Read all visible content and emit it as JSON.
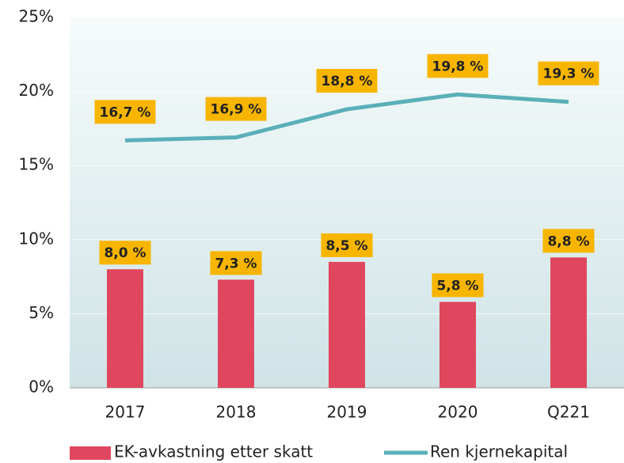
{
  "chart_data": {
    "type": "bar",
    "categories": [
      "2017",
      "2018",
      "2019",
      "2020",
      "Q221"
    ],
    "series": [
      {
        "name": "EK-avkastning etter skatt",
        "type": "bar",
        "color": "#e0475e",
        "values": [
          8.0,
          7.3,
          8.5,
          5.8,
          8.8
        ],
        "value_labels": [
          "8,0 %",
          "7,3 %",
          "8,5 %",
          "5,8 %",
          "8,8 %"
        ]
      },
      {
        "name": "Ren kjernekapital",
        "type": "line",
        "color": "#5aafb8",
        "values": [
          16.7,
          16.9,
          18.8,
          19.8,
          19.3
        ],
        "value_labels": [
          "16,7 %",
          "16,9 %",
          "18,8 %",
          "19,8 %",
          "19,3 %"
        ]
      }
    ],
    "ylim": [
      0,
      25
    ],
    "yticks": [
      {
        "value": 0,
        "label": "0%"
      },
      {
        "value": 5,
        "label": "5%"
      },
      {
        "value": 10,
        "label": "10%"
      },
      {
        "value": 15,
        "label": "15%"
      },
      {
        "value": 20,
        "label": "20%"
      },
      {
        "value": 25,
        "label": "25%"
      }
    ],
    "grid": true,
    "label_box_color": "#f7b500",
    "legend": "bottom"
  }
}
